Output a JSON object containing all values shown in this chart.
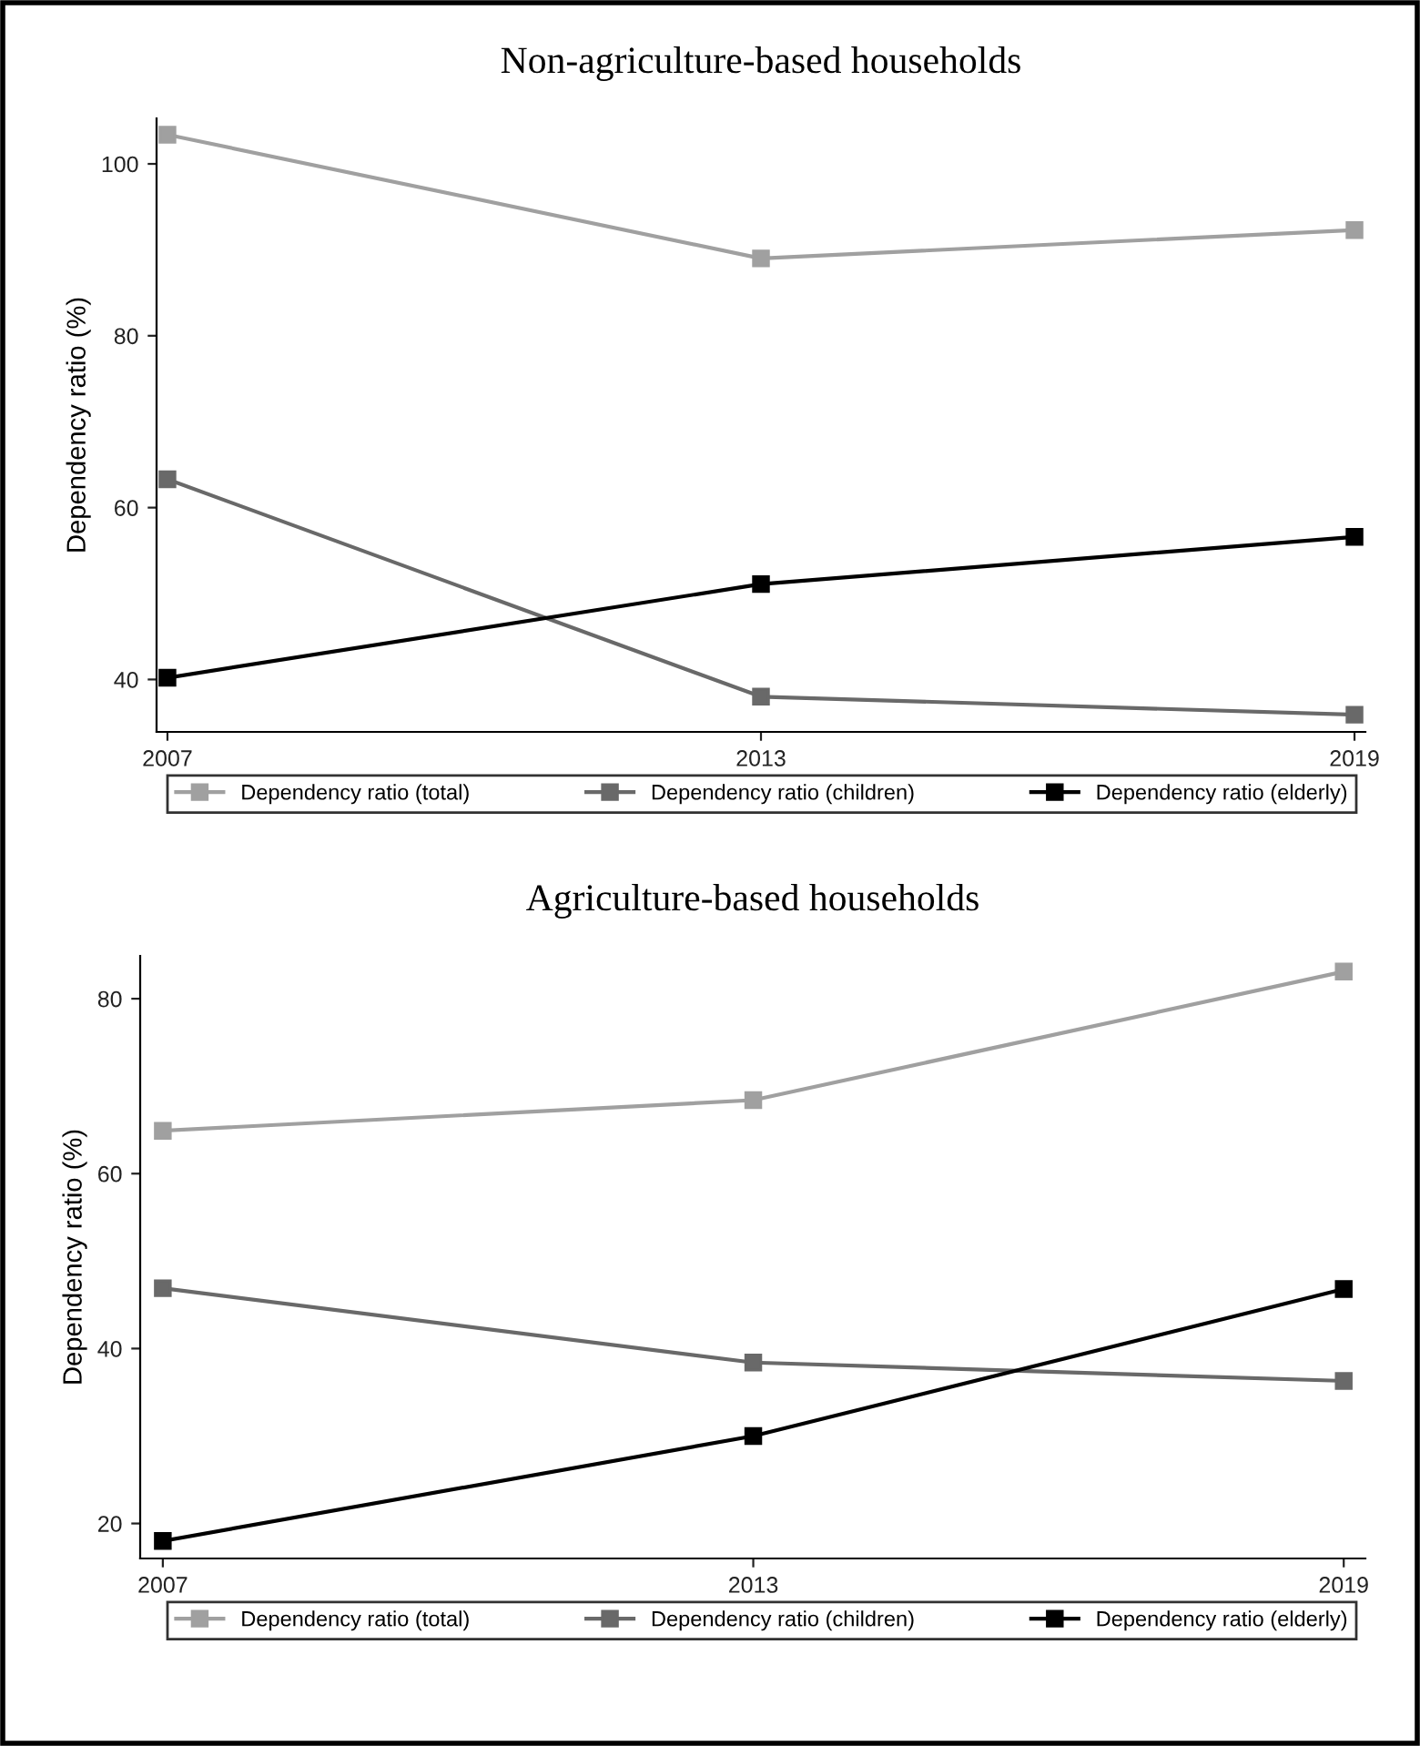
{
  "chart_data": [
    {
      "type": "line",
      "title": "Non-agriculture-based households",
      "ylabel": "Dependency ratio (%)",
      "x": [
        2007,
        2013,
        2019
      ],
      "xlim": [
        2006.89,
        2019.11
      ],
      "xticks": [
        2007,
        2013,
        2019
      ],
      "ylim": [
        33.9,
        105.3
      ],
      "yticks": [
        40,
        60,
        80,
        100
      ],
      "marker": "square",
      "grid": false,
      "legend": "bottom",
      "series": [
        {
          "name": "Dependency ratio (total)",
          "color": "#a0a0a0",
          "values": [
            103.4,
            89.0,
            92.3
          ]
        },
        {
          "name": "Dependency ratio (children)",
          "color": "#696969",
          "values": [
            63.3,
            38.0,
            35.9
          ]
        },
        {
          "name": "Dependency ratio (elderly)",
          "color": "#000000",
          "values": [
            40.2,
            51.1,
            56.6
          ]
        }
      ]
    },
    {
      "type": "line",
      "title": "Agriculture-based households",
      "ylabel": "Dependency ratio (%)",
      "x": [
        2007,
        2013,
        2019
      ],
      "xlim": [
        2006.77,
        2019.22
      ],
      "xticks": [
        2007,
        2013,
        2019
      ],
      "ylim": [
        16.0,
        84.9
      ],
      "yticks": [
        20,
        40,
        60,
        80
      ],
      "marker": "square",
      "grid": false,
      "legend": "bottom",
      "series": [
        {
          "name": "Dependency ratio (total)",
          "color": "#a0a0a0",
          "values": [
            64.9,
            68.4,
            83.1
          ]
        },
        {
          "name": "Dependency ratio (children)",
          "color": "#696969",
          "values": [
            46.9,
            38.4,
            36.3
          ]
        },
        {
          "name": "Dependency ratio (elderly)",
          "color": "#000000",
          "values": [
            18.0,
            30.0,
            46.8
          ]
        }
      ]
    }
  ]
}
